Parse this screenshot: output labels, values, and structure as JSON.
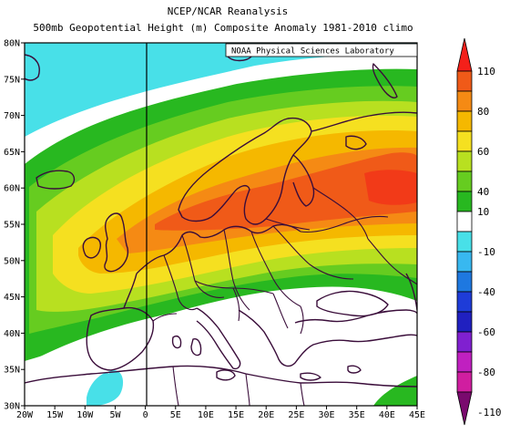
{
  "header": {
    "title": "NCEP/NCAR Reanalysis",
    "subtitle": "500mb Geopotential Height (m) Composite Anomaly 1981-2010 climo"
  },
  "map": {
    "credit": "NOAA Physical Sciences Laboratory",
    "x_ticks": [
      "20W",
      "15W",
      "10W",
      "5W",
      "0",
      "5E",
      "10E",
      "15E",
      "20E",
      "25E",
      "30E",
      "35E",
      "40E",
      "45E"
    ],
    "y_ticks": [
      "80N",
      "75N",
      "70N",
      "65N",
      "60N",
      "55N",
      "50N",
      "45N",
      "40N",
      "35N",
      "30N"
    ],
    "lon_range": [
      -20,
      45
    ],
    "lat_range": [
      30,
      80
    ],
    "field": "500mb geopotential height anomaly (m)"
  },
  "colorbar": {
    "labels": [
      "110",
      "80",
      "60",
      "40",
      "10",
      "-10",
      "-40",
      "-60",
      "-80",
      "-110"
    ],
    "colors": [
      "#f4201a",
      "#f05a18",
      "#f58a14",
      "#f5b800",
      "#f5e020",
      "#b8e020",
      "#66cc20",
      "#28b820",
      "#ffffff",
      "#48e0e8",
      "#38b8f0",
      "#1e78e0",
      "#1e3cd8",
      "#2020c0",
      "#8020d0",
      "#c020c0",
      "#d01ea0",
      "#7a0a6e"
    ]
  }
}
